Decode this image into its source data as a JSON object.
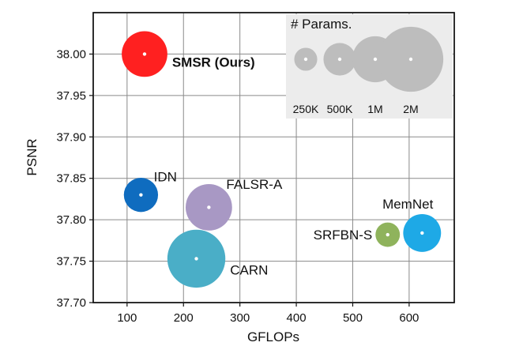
{
  "chart_data": {
    "type": "scatter",
    "title": "",
    "xlabel": "GFLOPs",
    "ylabel": "PSNR",
    "xlim": [
      40,
      680
    ],
    "ylim": [
      37.7,
      38.05
    ],
    "xticks": [
      100,
      200,
      300,
      400,
      500,
      600
    ],
    "yticks": [
      37.7,
      37.75,
      37.8,
      37.85,
      37.9,
      37.95,
      38.0
    ],
    "grid": true,
    "points": [
      {
        "name": "SMSR (Ours)",
        "x": 131,
        "y": 38.0,
        "params_k": 985,
        "color": "#ff2020",
        "bold": true,
        "label_pos": "right"
      },
      {
        "name": "IDN",
        "x": 124.6,
        "y": 37.83,
        "params_k": 553,
        "color": "#0f6cbf",
        "bold": false,
        "label_pos": "upper-right"
      },
      {
        "name": "FALSR-A",
        "x": 245,
        "y": 37.815,
        "params_k": 1021,
        "color": "#a898c4",
        "bold": false,
        "label_pos": "upper-right"
      },
      {
        "name": "CARN",
        "x": 222.8,
        "y": 37.753,
        "params_k": 1592,
        "color": "#4aaec7",
        "bold": false,
        "label_pos": "right"
      },
      {
        "name": "SRFBN-S",
        "x": 562,
        "y": 37.782,
        "params_k": 282,
        "color": "#8fb35c",
        "bold": false,
        "label_pos": "left"
      },
      {
        "name": "MemNet",
        "x": 623,
        "y": 37.784,
        "params_k": 677,
        "color": "#1ea9e6",
        "bold": false,
        "label_pos": "upper-left"
      }
    ],
    "size_legend": {
      "title": "# Params.",
      "placement": "top-right",
      "entries": [
        {
          "label": "250K",
          "params_k": 250
        },
        {
          "label": "500K",
          "params_k": 500
        },
        {
          "label": "1M",
          "params_k": 1000
        },
        {
          "label": "2M",
          "params_k": 2000
        }
      ]
    }
  }
}
